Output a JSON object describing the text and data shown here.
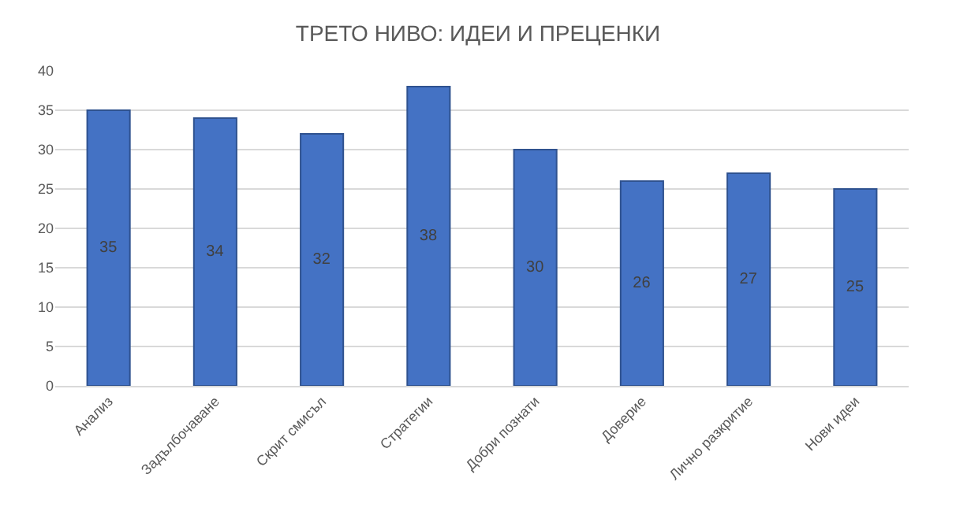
{
  "chart_data": {
    "type": "bar",
    "title": "ТРЕТО НИВО: ИДЕИ И ПРЕЦЕНКИ",
    "categories": [
      "Анализ",
      "Задълбочаване",
      "Скрит смисъл",
      "Стратегии",
      "Добри познати",
      "Доверие",
      "Лично разкритие",
      "Нови идеи"
    ],
    "values": [
      35,
      34,
      32,
      38,
      30,
      26,
      27,
      25
    ],
    "color": "#4472c4",
    "ylim": [
      0,
      40
    ],
    "yticks": [
      0,
      5,
      10,
      15,
      20,
      25,
      30,
      35,
      40
    ],
    "grid": "y",
    "data_labels": true
  }
}
